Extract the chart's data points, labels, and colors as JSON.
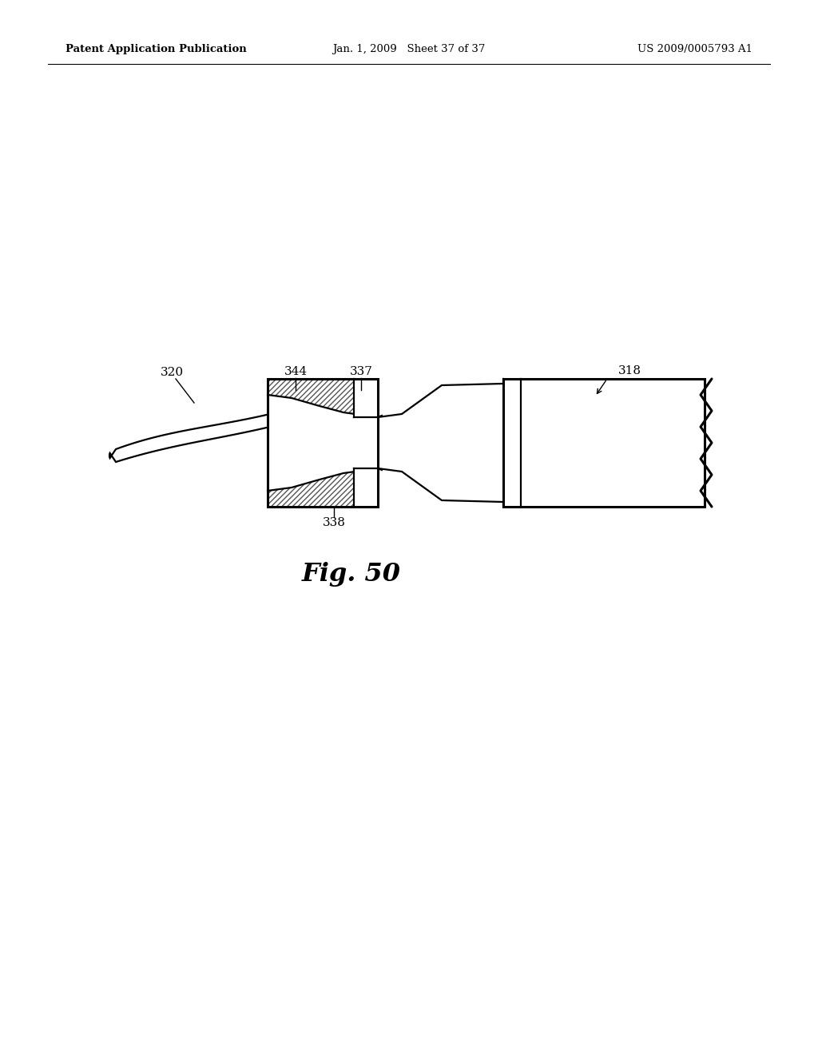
{
  "bg_color": "#ffffff",
  "lc": "#000000",
  "header_left": "Patent Application Publication",
  "header_mid": "Jan. 1, 2009   Sheet 37 of 37",
  "header_right": "US 2009/0005793 A1",
  "fig_label": "Fig. 50",
  "label_320": "320",
  "label_344": "344",
  "label_337": "337",
  "label_318": "318",
  "label_338": "338",
  "lw_main": 1.6,
  "lw_thick": 2.2,
  "lw_thin": 1.0
}
